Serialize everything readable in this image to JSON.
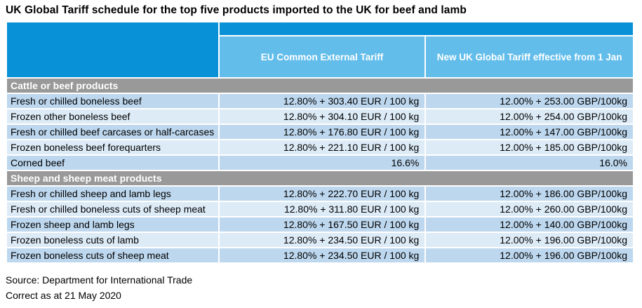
{
  "page_title": "UK Global Tariff schedule for the top five products imported to the UK for beef and lamb",
  "colors": {
    "header_blue": "#0991d8",
    "subheader_blue": "#62bdeb",
    "section_gray": "#999999",
    "row_medium_blue": "#bdd7ee",
    "row_light_blue": "#ddebf7",
    "header_text": "#ffffff",
    "body_text": "#000000"
  },
  "chart_data": {
    "type": "table",
    "title": "UK Global Tariff schedule for the top five products imported to the UK for beef and lamb",
    "columns": {
      "product": "",
      "eu": "EU Common External Tariff",
      "uk": "New UK Global Tariff effective from 1 Jan"
    },
    "sections": [
      {
        "header": "Cattle or beef products",
        "rows": [
          {
            "product": "Fresh or chilled boneless beef",
            "eu": "12.80% + 303.40 EUR / 100 kg",
            "uk": "12.00% + 253.00 GBP/100kg"
          },
          {
            "product": "Frozen other boneless beef",
            "eu": "12.80% + 304.10 EUR / 100 kg",
            "uk": "12.00% + 254.00 GBP/100kg"
          },
          {
            "product": "Fresh or chilled beef carcases or half-carcases",
            "eu": "12.80% + 176.80 EUR / 100 kg",
            "uk": "12.00% + 147.00 GBP/100kg"
          },
          {
            "product": "Frozen boneless beef forequarters",
            "eu": "12.80% + 221.10 EUR / 100 kg",
            "uk": "12.00% + 185.00 GBP/100kg"
          },
          {
            "product": "Corned beef",
            "eu": "16.6%",
            "uk": "16.0%"
          }
        ]
      },
      {
        "header": "Sheep and sheep meat products",
        "rows": [
          {
            "product": "Fresh or chilled sheep and lamb legs",
            "eu": "12.80% + 222.70 EUR / 100 kg",
            "uk": "12.00% + 186.00 GBP/100kg"
          },
          {
            "product": "Fresh or chilled boneless cuts of sheep meat",
            "eu": "12.80% + 311.80 EUR / 100 kg",
            "uk": "12.00% + 260.00 GBP/100kg"
          },
          {
            "product": "Frozen sheep and lamb legs",
            "eu": "12.80% + 167.50 EUR / 100 kg",
            "uk": "12.00% + 140.00 GBP/100kg"
          },
          {
            "product": "Frozen boneless cuts of lamb",
            "eu": "12.80% + 234.50 EUR / 100 kg",
            "uk": "12.00% + 196.00 GBP/100kg"
          },
          {
            "product": "Frozen boneless cuts of sheep meat",
            "eu": "12.80% + 234.50 EUR / 100 kg",
            "uk": "12.00% + 196.00 GBP/100kg"
          }
        ]
      }
    ],
    "footnotes": {
      "source": "Source: Department for International Trade",
      "correct_as_at": "Correct as at 21 May 2020"
    }
  }
}
